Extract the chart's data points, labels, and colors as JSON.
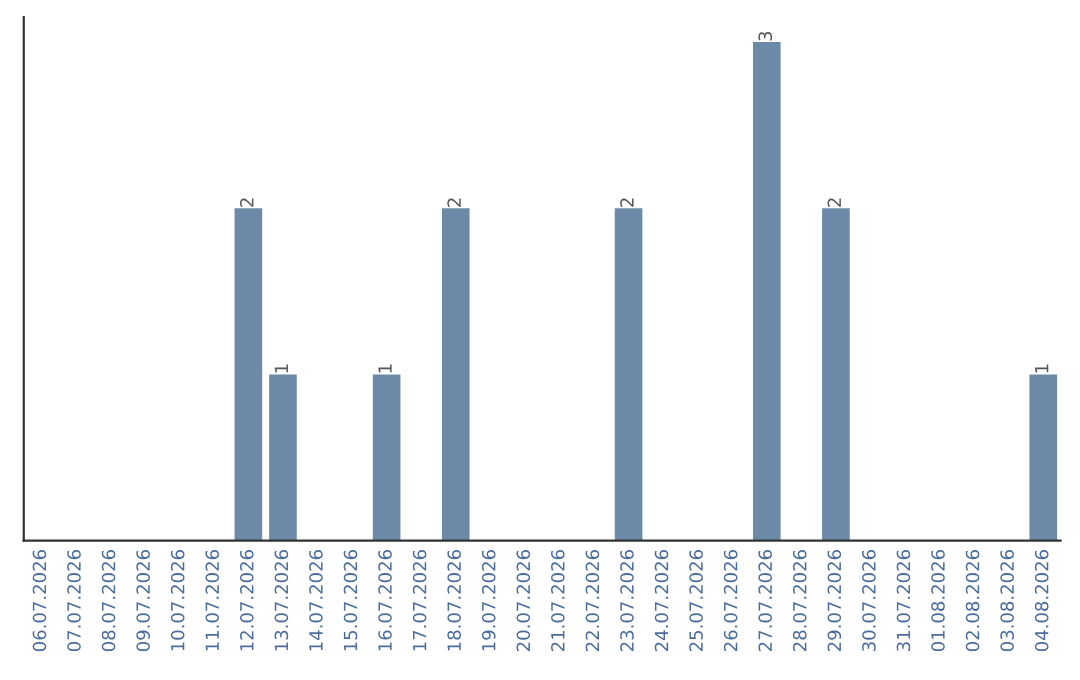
{
  "chart_data": {
    "type": "bar",
    "categories": [
      "06.07.2026",
      "07.07.2026",
      "08.07.2026",
      "09.07.2026",
      "10.07.2026",
      "11.07.2026",
      "12.07.2026",
      "13.07.2026",
      "14.07.2026",
      "15.07.2026",
      "16.07.2026",
      "17.07.2026",
      "18.07.2026",
      "19.07.2026",
      "20.07.2026",
      "21.07.2026",
      "22.07.2026",
      "23.07.2026",
      "24.07.2026",
      "25.07.2026",
      "26.07.2026",
      "27.07.2026",
      "28.07.2026",
      "29.07.2026",
      "30.07.2026",
      "31.07.2026",
      "01.08.2026",
      "02.08.2026",
      "03.08.2026",
      "04.08.2026"
    ],
    "values": [
      0,
      0,
      0,
      0,
      0,
      0,
      2,
      1,
      0,
      0,
      1,
      0,
      2,
      0,
      0,
      0,
      0,
      2,
      0,
      0,
      0,
      3,
      0,
      2,
      0,
      0,
      0,
      0,
      0,
      1
    ],
    "value_labels": [
      null,
      null,
      null,
      null,
      null,
      null,
      "2",
      "1",
      null,
      null,
      "1",
      null,
      "2",
      null,
      null,
      null,
      null,
      "2",
      null,
      null,
      null,
      "3",
      null,
      "2",
      null,
      null,
      null,
      null,
      null,
      "1"
    ],
    "color": "#6c8aa8",
    "tick_labels": "x",
    "grid": false
  }
}
